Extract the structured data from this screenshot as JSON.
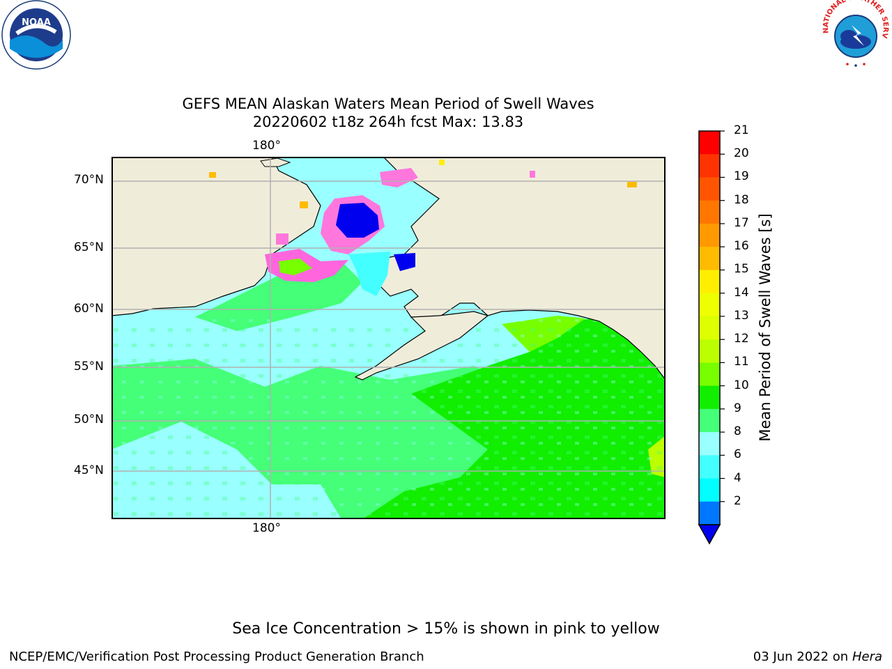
{
  "title": {
    "line1": "GEFS MEAN Alaskan Waters Mean Period of Swell Waves",
    "line2": "20220602 t18z 264h fcst   Max: 13.83"
  },
  "map": {
    "lon_label_top": "180°",
    "lon_label_bottom": "180°",
    "lat_labels": [
      "70°N",
      "65°N",
      "60°N",
      "55°N",
      "50°N",
      "45°N"
    ]
  },
  "colorbar": {
    "label": "Mean Period of Swell Waves [s]",
    "ticks": [
      "21",
      "20",
      "19",
      "18",
      "17",
      "16",
      "15",
      "14",
      "13",
      "12",
      "11",
      "10",
      "9",
      "8",
      "6",
      "4",
      "2"
    ],
    "colors": [
      "#ff0000",
      "#ff3300",
      "#ff5500",
      "#ff7700",
      "#ff9900",
      "#ffbb00",
      "#ffee00",
      "#eeff00",
      "#ddff00",
      "#bbff00",
      "#77ff00",
      "#11ee00",
      "#44ff77",
      "#99ffff",
      "#44ffff",
      "#00ffff",
      "#0077ff"
    ],
    "extend_color": "#0000ee"
  },
  "logos": {
    "noaa": "NOAA",
    "nws": "NATIONAL WEATHER SERVICE"
  },
  "footer": {
    "note": "Sea Ice Concentration > 15% is shown in pink to yellow",
    "credit": "NCEP/EMC/Verification Post Processing Product Generation Branch",
    "date": "03 Jun 2022 on",
    "host": "Hera"
  }
}
